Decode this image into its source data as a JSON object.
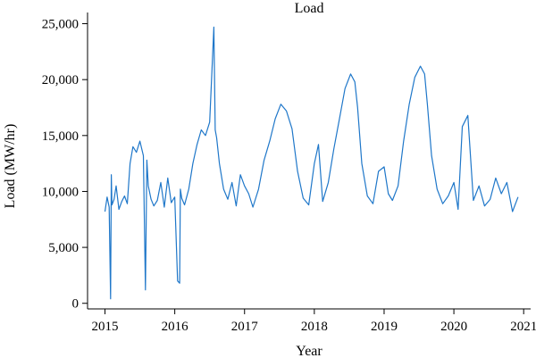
{
  "chart_data": {
    "type": "line",
    "title": "Load",
    "xlabel": "Year",
    "ylabel": "Load (MW/hr)",
    "xlim": [
      2014.75,
      2021.1
    ],
    "ylim": [
      -500,
      26000
    ],
    "x_ticks": [
      2015,
      2016,
      2017,
      2018,
      2019,
      2020,
      2021
    ],
    "x_tick_labels": [
      "2015",
      "2016",
      "2017",
      "2018",
      "2019",
      "2020",
      "2021"
    ],
    "y_ticks": [
      0,
      5000,
      10000,
      15000,
      20000,
      25000
    ],
    "y_tick_labels": [
      "0",
      "5,000",
      "10,000",
      "15,000",
      "20,000",
      "25,000"
    ],
    "grid": false,
    "legend": "none",
    "colors": {
      "series": "#1f77c9"
    },
    "series": [
      {
        "x": [
          2015.0,
          2015.03,
          2015.06,
          2015.08,
          2015.09,
          2015.1,
          2015.13,
          2015.16,
          2015.2,
          2015.24,
          2015.28,
          2015.32,
          2015.36,
          2015.4,
          2015.45,
          2015.5,
          2015.55,
          2015.58,
          2015.6,
          2015.62,
          2015.66,
          2015.7,
          2015.75,
          2015.8,
          2015.85,
          2015.9,
          2015.95,
          2016.0,
          2016.04,
          2016.07,
          2016.08,
          2016.1,
          2016.14,
          2016.2,
          2016.26,
          2016.32,
          2016.38,
          2016.44,
          2016.5,
          2016.56,
          2016.58,
          2016.6,
          2016.64,
          2016.7,
          2016.76,
          2016.82,
          2016.88,
          2016.94,
          2017.0,
          2017.06,
          2017.12,
          2017.2,
          2017.28,
          2017.36,
          2017.44,
          2017.52,
          2017.6,
          2017.68,
          2017.76,
          2017.84,
          2017.92,
          2018.0,
          2018.06,
          2018.12,
          2018.2,
          2018.28,
          2018.36,
          2018.44,
          2018.52,
          2018.58,
          2018.62,
          2018.68,
          2018.76,
          2018.84,
          2018.92,
          2019.0,
          2019.06,
          2019.12,
          2019.2,
          2019.28,
          2019.36,
          2019.44,
          2019.52,
          2019.58,
          2019.62,
          2019.68,
          2019.76,
          2019.84,
          2019.92,
          2020.0,
          2020.06,
          2020.12,
          2020.2,
          2020.28,
          2020.36,
          2020.44,
          2020.52,
          2020.6,
          2020.68,
          2020.76,
          2020.84,
          2020.92
        ],
        "y": [
          8200,
          9500,
          8600,
          400,
          11500,
          8800,
          9300,
          10500,
          8400,
          9100,
          9600,
          8900,
          12500,
          14000,
          13500,
          14500,
          13200,
          1200,
          12800,
          10500,
          9300,
          8700,
          9200,
          10800,
          8600,
          11200,
          9000,
          9500,
          2000,
          1800,
          10200,
          9400,
          8800,
          10200,
          12500,
          14200,
          15500,
          15000,
          16200,
          24700,
          15500,
          14800,
          12500,
          10200,
          9300,
          10800,
          8700,
          11500,
          10500,
          9800,
          8600,
          10200,
          12800,
          14500,
          16500,
          17800,
          17200,
          15600,
          11800,
          9400,
          8800,
          12500,
          14200,
          9100,
          10800,
          13800,
          16500,
          19200,
          20500,
          19800,
          17500,
          12500,
          9600,
          8900,
          11800,
          12200,
          9800,
          9200,
          10500,
          14500,
          17800,
          20200,
          21200,
          20500,
          17800,
          13200,
          10200,
          8900,
          9600,
          10800,
          8400,
          15800,
          16800,
          9200,
          10500,
          8700,
          9300,
          11200,
          9800,
          10800,
          8200,
          9500
        ]
      }
    ]
  }
}
